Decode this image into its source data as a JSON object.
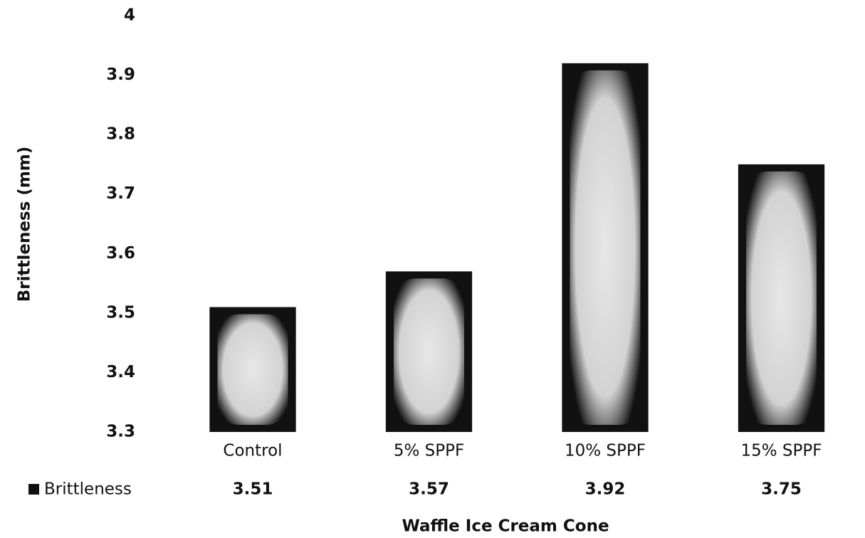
{
  "chart_data": {
    "type": "bar",
    "categories": [
      "Control",
      "5% SPPF",
      "10% SPPF",
      "15% SPPF"
    ],
    "series": [
      {
        "name": "Brittleness",
        "color": "#111111",
        "values": [
          3.51,
          3.57,
          3.92,
          3.75
        ]
      }
    ],
    "ylim": [
      3.3,
      4
    ],
    "yticks": [
      3.3,
      3.4,
      3.5,
      3.6,
      3.7,
      3.8,
      3.9,
      4
    ],
    "y_label": "Brittleness (mm)",
    "x_label": "Waffle Ice Cream Cone",
    "grid": false,
    "data_table": true
  }
}
